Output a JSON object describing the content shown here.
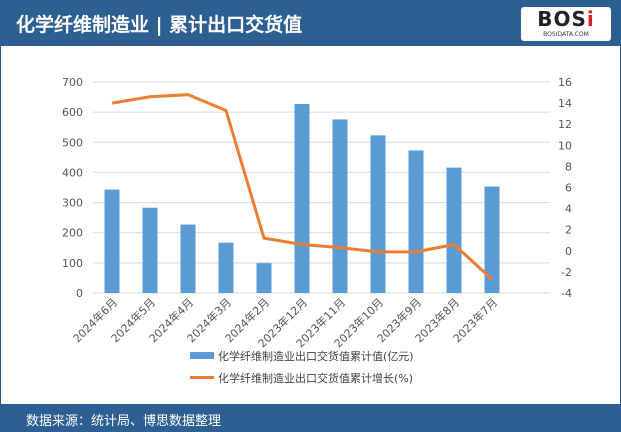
{
  "header": {
    "title": "化学纤维制造业 | 累计出口交货值",
    "logo": "BOSi BOSIDATA.COM"
  },
  "footer": {
    "source": "数据来源：统计局、博思数据整理"
  },
  "colors": {
    "bar": "#5b9bd5",
    "line": "#ed7d31",
    "header": "#2e5f93"
  },
  "chart_data": {
    "type": "bar+line",
    "categories": [
      "2024年6月",
      "2024年5月",
      "2024年4月",
      "2024年3月",
      "2024年2月",
      "2023年12月",
      "2023年11月",
      "2023年10月",
      "2023年9月",
      "2023年8月",
      "2023年7月"
    ],
    "series": [
      {
        "name": "化学纤维制造业出口交货值累计值(亿元)",
        "type": "bar",
        "axis": "left",
        "values": [
          343,
          283,
          227,
          167,
          99,
          627,
          576,
          523,
          473,
          416,
          353
        ]
      },
      {
        "name": "化学纤维制造业出口交货值累计增长(%)",
        "type": "line",
        "axis": "right",
        "values": [
          14.0,
          14.6,
          14.8,
          13.3,
          1.2,
          0.6,
          0.3,
          -0.1,
          -0.1,
          0.6,
          -2.7
        ]
      }
    ],
    "y_left": {
      "range": [
        0,
        700
      ],
      "ticks": [
        0,
        100,
        200,
        300,
        400,
        500,
        600,
        700
      ]
    },
    "y_right": {
      "range": [
        -4,
        16
      ],
      "ticks": [
        -4,
        -2,
        0,
        2,
        4,
        6,
        8,
        10,
        12,
        14,
        16
      ]
    },
    "grid": true,
    "legend": "bottom"
  }
}
